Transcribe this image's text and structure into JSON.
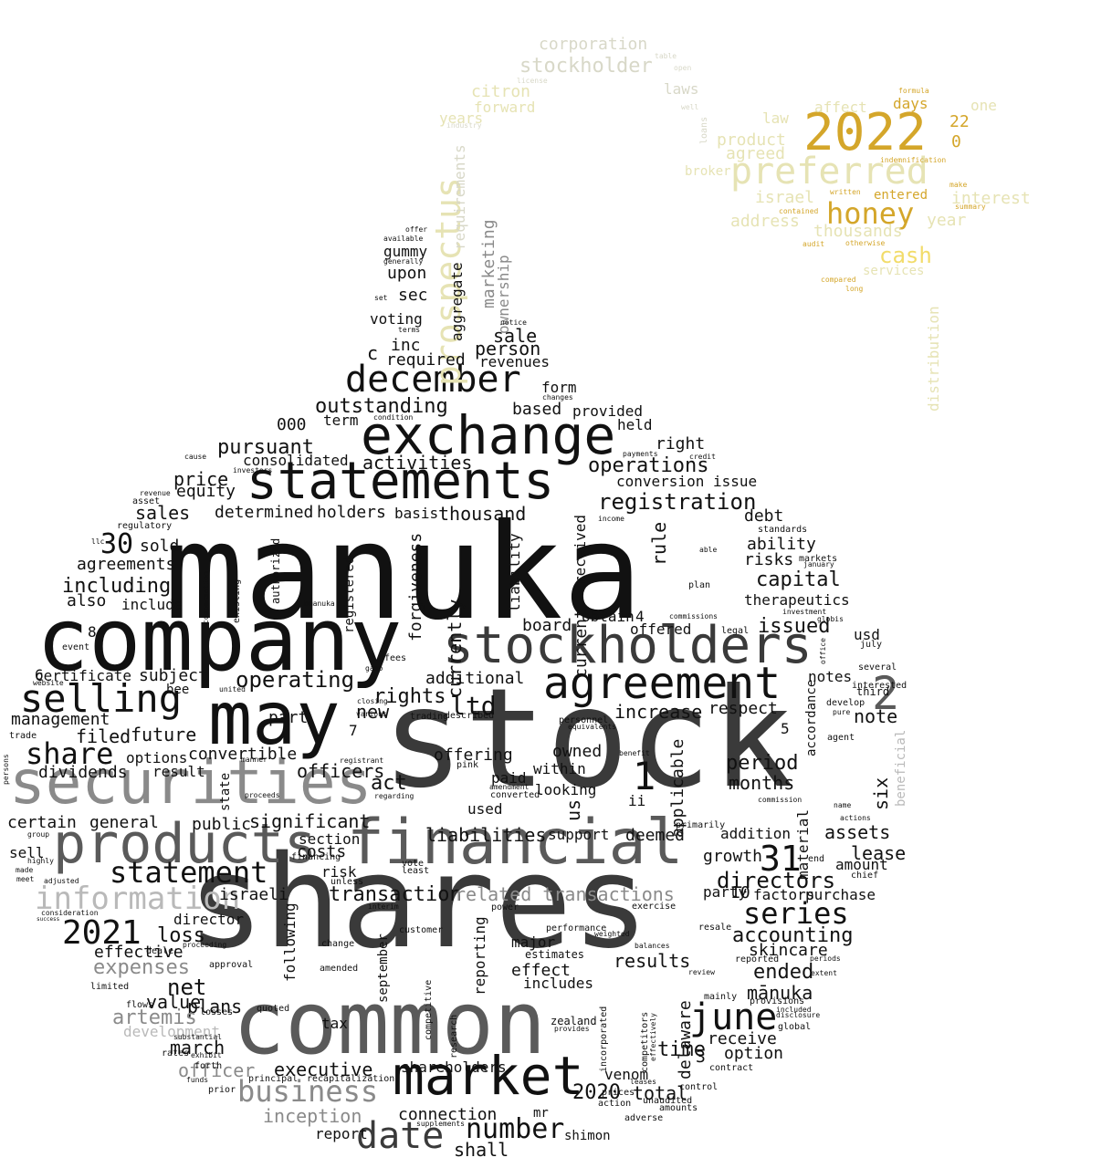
{
  "colors": {
    "black": "#111111",
    "dark_gray": "#3a3a3a",
    "mid_gray": "#5a5a5a",
    "gray": "#8a8a8a",
    "light_gray": "#b9b9b9",
    "pale": "#d8d8c8",
    "beige": "#e6e3b4",
    "gold": "#d4a62a",
    "yellow": "#f2dc6a",
    "pale_yellow": "#f6eaa0"
  },
  "words": [
    "manuka",
    "stock",
    "shares",
    "company",
    "common",
    "may",
    "securities",
    "financial",
    "products",
    "stockholders",
    "exchange",
    "statements",
    "market",
    "agreement",
    "date",
    "selling",
    "december",
    "2021",
    "information",
    "business",
    "statement",
    "share",
    "series",
    "number",
    "june",
    "31",
    "ltd",
    "1",
    "2",
    "registration",
    "operating",
    "2022",
    "preferred",
    "honey",
    "prospectus",
    "directors",
    "expenses",
    "accounting",
    "net",
    "loss",
    "operations",
    "capital",
    "cash",
    "therapeutics",
    "issued",
    "ended",
    "results",
    "time",
    "transaction",
    "related transactions",
    "liabilities",
    "assets",
    "lease",
    "executive",
    "mānuka",
    "skincare",
    "outstanding",
    "pursuant",
    "activities",
    "increase",
    "future",
    "respect",
    "note",
    "period",
    "months",
    "act",
    "new",
    "rights",
    "additional",
    "price",
    "equity",
    "determined",
    "holders",
    "basis",
    "thousand",
    "sales",
    "agreements",
    "including",
    "also",
    "include",
    "30",
    "sold",
    "effective",
    "value",
    "plans",
    "march",
    "officer",
    "artemis",
    "development",
    "inception",
    "connection",
    "shall",
    "2020",
    "shareholders",
    "total",
    "receive",
    "option",
    "delaware",
    "venom",
    "officers",
    "convertible",
    "options",
    "filed",
    "management",
    "dividends",
    "certificate",
    "subject",
    "general",
    "certain",
    "significant",
    "section",
    "costs",
    "risk",
    "israeli",
    "director",
    "report",
    "upon",
    "sec",
    "inc",
    "voting",
    "person",
    "required",
    "revenues",
    "sale",
    "marketing",
    "ownership",
    "aggregate",
    "requirements",
    "citron",
    "forward",
    "years",
    "corporation",
    "stockholder",
    "laws",
    "product",
    "agreed",
    "israel",
    "thousands",
    "address",
    "entered",
    "interest",
    "year",
    "services",
    "distribution",
    "days",
    "affect",
    "law",
    "one",
    "broker",
    "currently",
    "current",
    "received",
    "board",
    "obtain",
    "offered",
    "applicable",
    "us",
    "owned",
    "within",
    "looking",
    "paid",
    "used",
    "offering",
    "support",
    "deemed",
    "addition",
    "growth",
    "amount",
    "material",
    "accordance",
    "six",
    "notes",
    "usd",
    "debt",
    "ability",
    "risks",
    "rule",
    "conversion issue",
    "right",
    "provided",
    "based",
    "form",
    "held",
    "term",
    "000",
    "consolidated",
    "c",
    "gummy",
    "forgiveness",
    "liability",
    "factors",
    "purchase",
    "party",
    "10",
    "3",
    "4",
    "5",
    "6",
    "7",
    "8",
    "ii",
    "0",
    "22",
    "tax",
    "part",
    "public",
    "sell",
    "following",
    "september",
    "reporting",
    "effect",
    "includes",
    "major",
    "competitive",
    "research",
    "incorporated",
    "beneficial",
    "quoted",
    "proceeds",
    "mr",
    "shimon",
    "amended",
    "state",
    "registered",
    "authorized",
    "result",
    "manner",
    "recapitalization",
    "principal",
    "adjusted",
    "adverse",
    "unaudited",
    "amounts",
    "filing",
    "chief",
    "commission",
    "primarily",
    "equivalents",
    "personnel",
    "trading",
    "pink",
    "zealand",
    "provides",
    "supplements",
    "leases",
    "prices",
    "action",
    "contract",
    "control",
    "index",
    "competitors",
    "effectively",
    "estimates",
    "performance",
    "weighted",
    "balances",
    "resale",
    "review",
    "reported",
    "periods",
    "mainly",
    "provisions",
    "included",
    "global",
    "disclosure",
    "extent",
    "vote",
    "least",
    "unless",
    "financing",
    "symbol",
    "exercise",
    "power",
    "customer",
    "interim",
    "change",
    "approval",
    "proceeding",
    "limited",
    "leading",
    "losses",
    "substantial",
    "decrease",
    "rates",
    "exhibit",
    "funds",
    "prior",
    "forth",
    "dealer",
    "flows",
    "regulatory",
    "compensation",
    "existing",
    "permitted",
    "adversely",
    "representing",
    "bmanuka",
    "meaning",
    "position",
    "size",
    "efforts",
    "fees",
    "gaap",
    "website",
    "team",
    "claim",
    "event",
    "bee",
    "without",
    "united",
    "expected",
    "annual",
    "average",
    "regulations",
    "closing",
    "various",
    "registrant",
    "regarding",
    "described",
    "uncertainties",
    "benefit",
    "deficiency",
    "request",
    "percent",
    "national",
    "refer",
    "amendment",
    "converted",
    "gross",
    "independent",
    "beneficially",
    "considered",
    "assumptions",
    "waitemata",
    "comprehensive",
    "successfully",
    "accumulated",
    "provide",
    "brand",
    "vitamins",
    "parties",
    "necessary",
    "plan",
    "key",
    "able",
    "mill",
    "incurred",
    "markets",
    "january",
    "investment",
    "principles",
    "globis",
    "office",
    "july",
    "materially",
    "several",
    "interested",
    "develop",
    "third",
    "pure",
    "agent",
    "assurance",
    "stated",
    "equipment",
    "portion",
    "follows",
    "actions",
    "list",
    "name",
    "consent",
    "end",
    "accompanying",
    "became",
    "standards",
    "legal",
    "par",
    "commissions",
    "incorporation",
    "service",
    "intends",
    "credit",
    "payments",
    "events",
    "among",
    "cannot",
    "recognized",
    "except",
    "dealers",
    "dated",
    "sufficient",
    "investors",
    "cause",
    "relationships",
    "revenue",
    "asset",
    "lower",
    "consists",
    "unable",
    "reasonably",
    "special",
    "relating",
    "income",
    "termination",
    "attributable",
    "changes",
    "condition",
    "employees",
    "set",
    "dollar",
    "payment",
    "spa",
    "terms",
    "notice",
    "determining",
    "approximately",
    "generally",
    "available",
    "offer",
    "industry",
    "license",
    "pay",
    "initial",
    "way",
    "chonsky",
    "dollars",
    "iv",
    "table",
    "open",
    "iii",
    "well",
    "loans",
    "investing",
    "whether",
    "accepted",
    "indemnification",
    "formula",
    "became",
    "chief",
    "contained",
    "otherwise",
    "audit",
    "compared",
    "long",
    "written",
    "preferences",
    "developing",
    "make",
    "summary",
    "continue",
    "firm",
    "currency",
    "states",
    "trade",
    "persons",
    "group",
    "highly",
    "made",
    "meet",
    "consideration",
    "success",
    "pursuant",
    "certificate",
    "190",
    "rmb",
    "llc"
  ]
}
